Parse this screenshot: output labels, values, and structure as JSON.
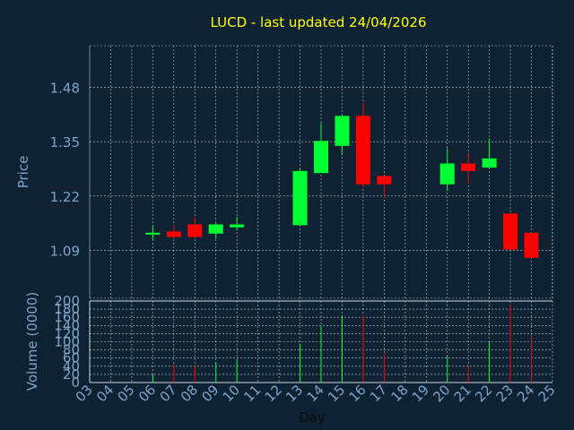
{
  "chart_data": {
    "type": "candlestick",
    "title": "LUCD - last updated 24/04/2026",
    "xlabel": "Day",
    "price_panel": {
      "ylabel": "Price",
      "y_ticks": [
        "1.09",
        "1.22",
        "1.35",
        "1.48"
      ],
      "ylim": [
        0.975,
        1.58
      ],
      "grid": true
    },
    "volume_panel": {
      "ylabel": "Volume (0000)",
      "y_ticks": [
        "0",
        "20",
        "40",
        "60",
        "80",
        "100",
        "120",
        "140",
        "160",
        "180",
        "200"
      ],
      "ylim": [
        0,
        200
      ],
      "grid": true
    },
    "x_ticks": [
      "03",
      "04",
      "05",
      "06",
      "07",
      "08",
      "09",
      "10",
      "11",
      "12",
      "13",
      "14",
      "15",
      "16",
      "17",
      "18",
      "19",
      "20",
      "21",
      "22",
      "23",
      "24",
      "25"
    ],
    "candles": [
      {
        "day": "06",
        "open": 1.128,
        "high": 1.148,
        "low": 1.115,
        "close": 1.132,
        "volume": 20
      },
      {
        "day": "07",
        "open": 1.135,
        "high": 1.15,
        "low": 1.118,
        "close": 1.122,
        "volume": 45
      },
      {
        "day": "08",
        "open": 1.152,
        "high": 1.17,
        "low": 1.118,
        "close": 1.122,
        "volume": 40
      },
      {
        "day": "09",
        "open": 1.13,
        "high": 1.155,
        "low": 1.118,
        "close": 1.152,
        "volume": 50
      },
      {
        "day": "10",
        "open": 1.145,
        "high": 1.17,
        "low": 1.138,
        "close": 1.152,
        "volume": 55
      },
      {
        "day": "13",
        "open": 1.15,
        "high": 1.285,
        "low": 1.15,
        "close": 1.28,
        "volume": 95
      },
      {
        "day": "14",
        "open": 1.275,
        "high": 1.395,
        "low": 1.275,
        "close": 1.352,
        "volume": 140
      },
      {
        "day": "15",
        "open": 1.34,
        "high": 1.412,
        "low": 1.318,
        "close": 1.412,
        "volume": 165
      },
      {
        "day": "16",
        "open": 1.412,
        "high": 1.445,
        "low": 1.24,
        "close": 1.248,
        "volume": 165
      },
      {
        "day": "17",
        "open": 1.268,
        "high": 1.268,
        "low": 1.215,
        "close": 1.248,
        "volume": 70
      },
      {
        "day": "20",
        "open": 1.248,
        "high": 1.335,
        "low": 1.232,
        "close": 1.298,
        "volume": 65
      },
      {
        "day": "21",
        "open": 1.298,
        "high": 1.32,
        "low": 1.25,
        "close": 1.28,
        "volume": 40
      },
      {
        "day": "22",
        "open": 1.288,
        "high": 1.358,
        "low": 1.288,
        "close": 1.31,
        "volume": 100
      },
      {
        "day": "23",
        "open": 1.178,
        "high": 1.178,
        "low": 1.09,
        "close": 1.092,
        "volume": 190
      },
      {
        "day": "24",
        "open": 1.132,
        "high": 1.132,
        "low": 1.072,
        "close": 1.072,
        "volume": 115
      }
    ],
    "colors": {
      "background": "#0f2234",
      "up": "#00ff33",
      "down": "#ff0000",
      "title": "#ffff00",
      "axis_text": "#7fa5c8",
      "grid": "#ffffff"
    }
  }
}
